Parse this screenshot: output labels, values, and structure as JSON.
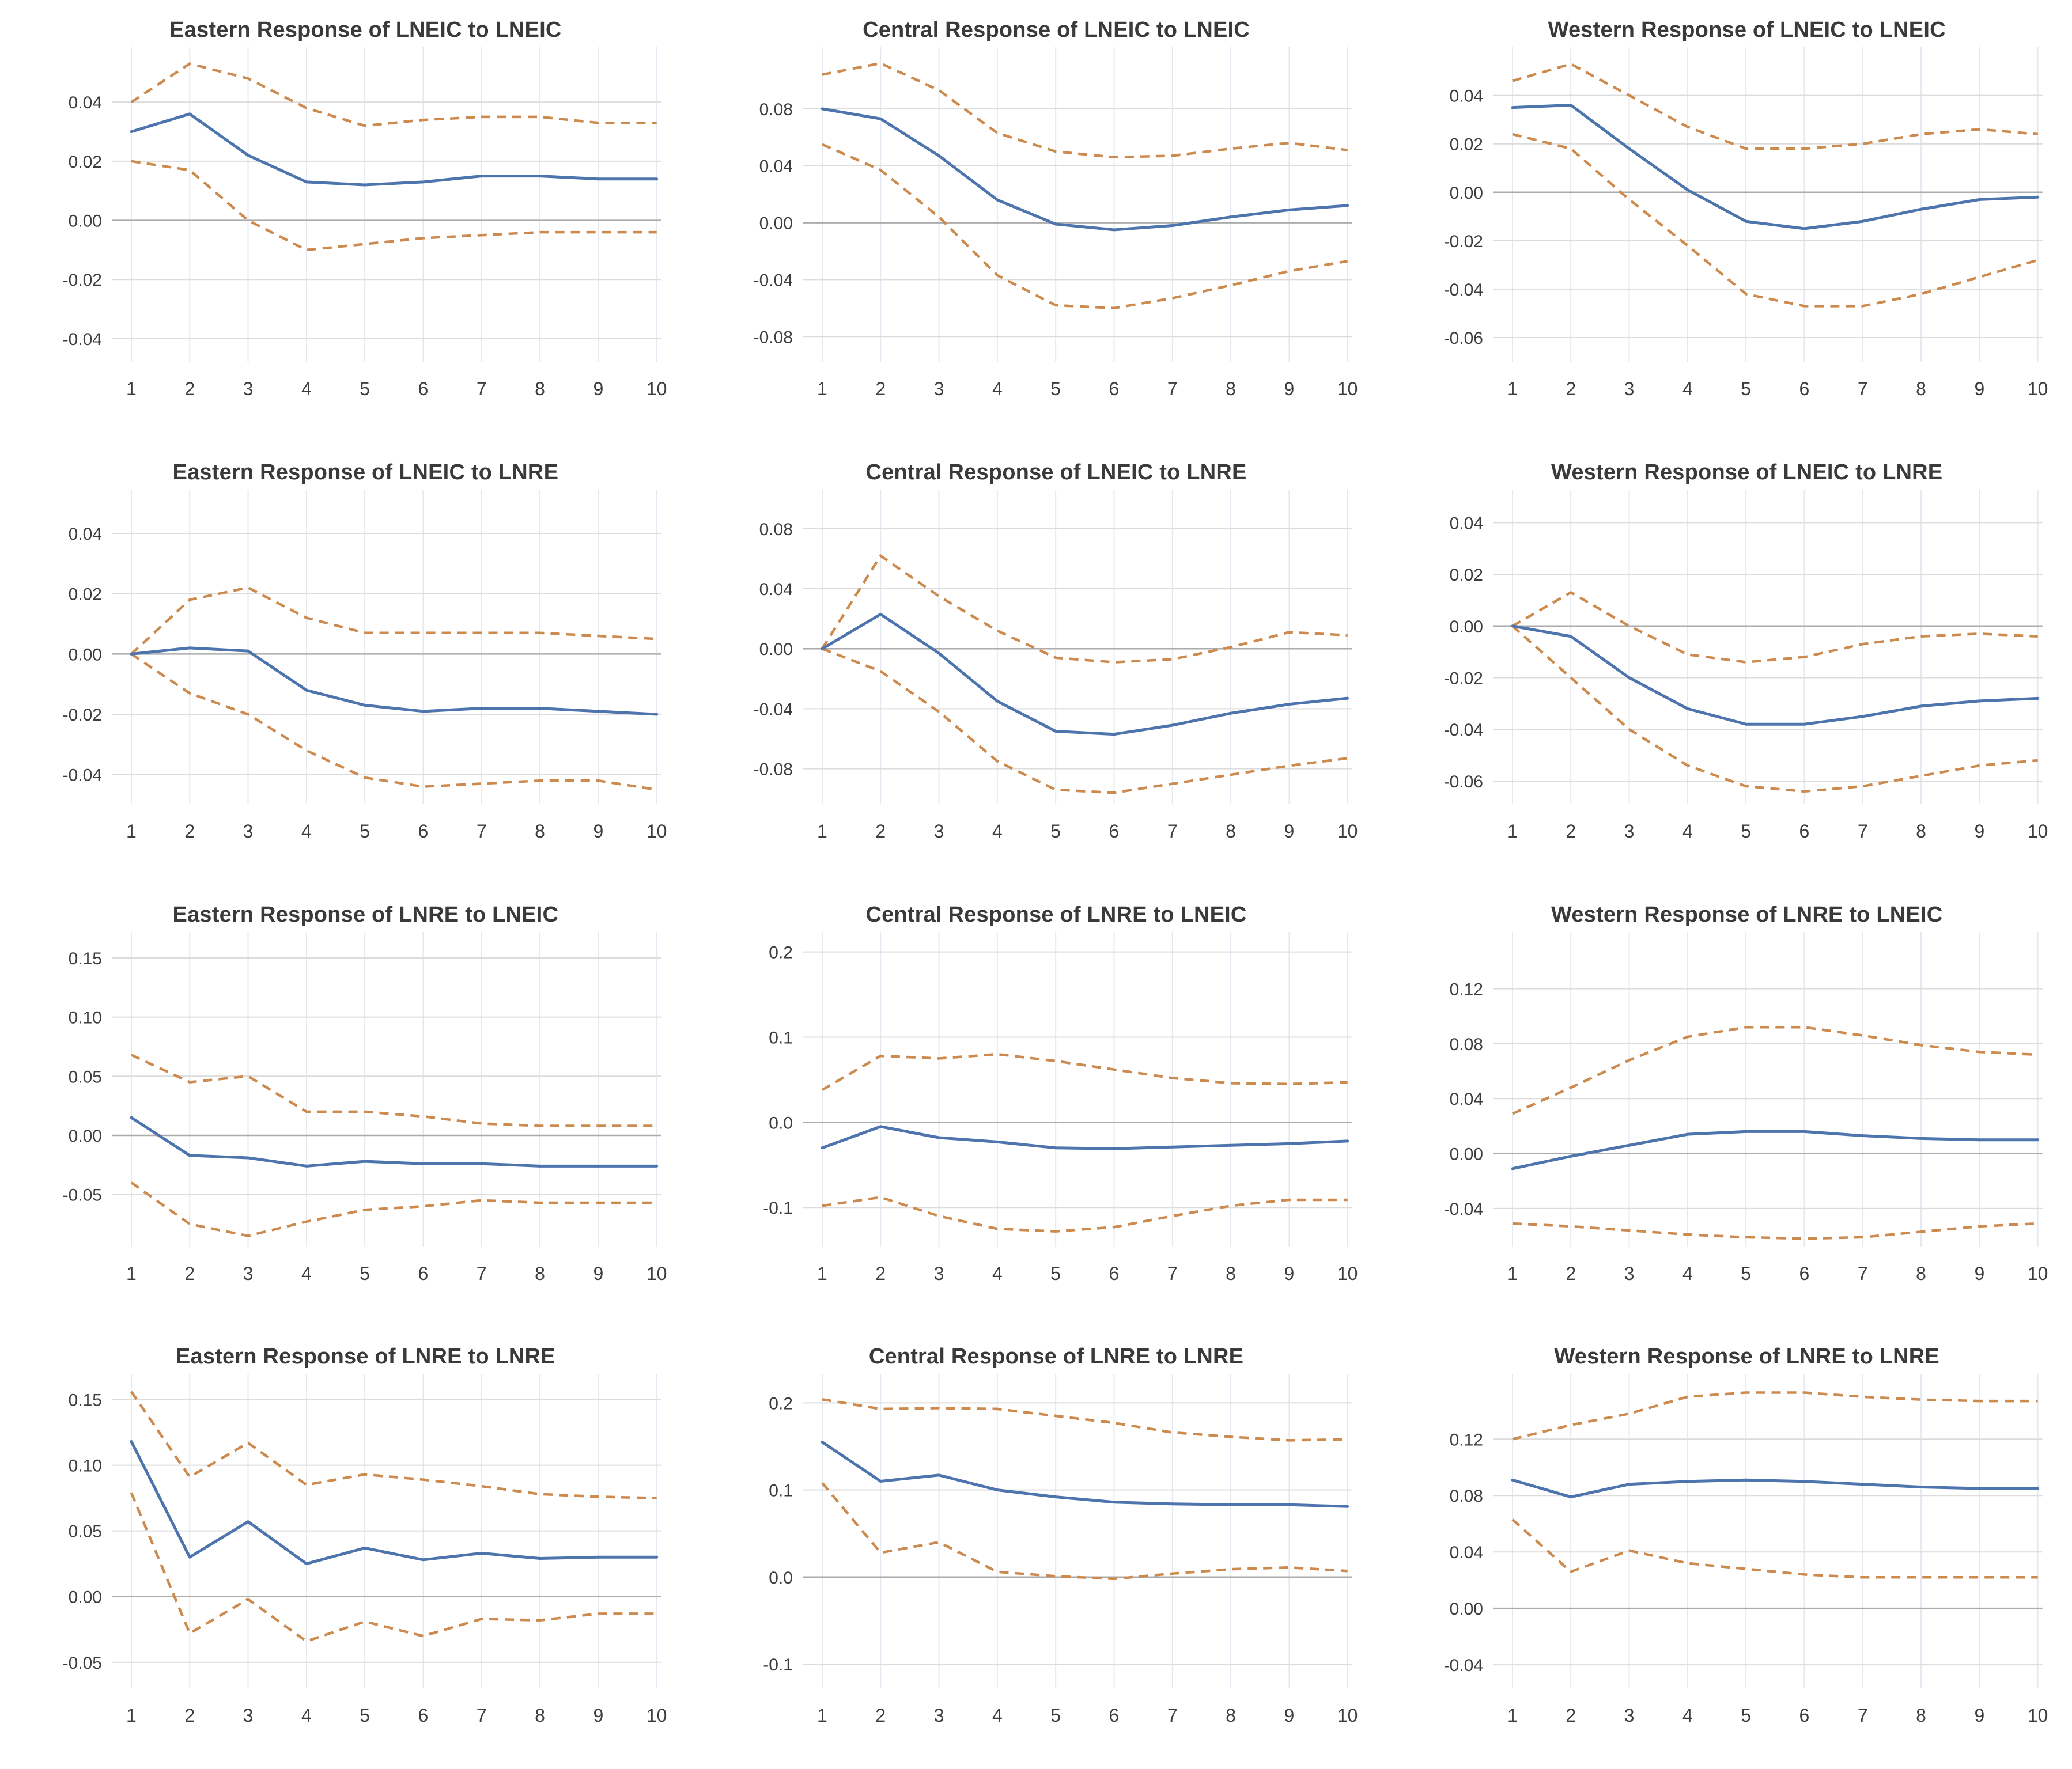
{
  "style": {
    "response_line_color": "#4e74ae",
    "band_line_color": "#cd8a4e",
    "grid_color": "#dcdcdc",
    "zero_line_color": "#ababab",
    "vgrid_color": "#e4e9f1",
    "title_color": "#3a3a3a",
    "tick_label_color": "#3d3d3d",
    "background": "#ffffff"
  },
  "layout": {
    "rows": 4,
    "cols": 3,
    "grid": "on",
    "legend": "none",
    "x_range": [
      1,
      10
    ]
  },
  "chart_data": [
    {
      "type": "line",
      "title": "Eastern Response of LNEIC to LNEIC",
      "x": [
        1,
        2,
        3,
        4,
        5,
        6,
        7,
        8,
        9,
        10
      ],
      "xlabel": "",
      "ylabel": "",
      "ylim": [
        -0.047,
        0.057
      ],
      "y_ticks": [
        0.04,
        0.02,
        0.0,
        -0.02,
        -0.04
      ],
      "y_tick_labels": [
        "0.04",
        "0.02",
        "0.00",
        "-0.02",
        "-0.04"
      ],
      "series": [
        {
          "name": "response",
          "values": [
            0.03,
            0.036,
            0.022,
            0.013,
            0.012,
            0.013,
            0.015,
            0.015,
            0.014,
            0.014
          ]
        },
        {
          "name": "upper_band",
          "values": [
            0.04,
            0.053,
            0.048,
            0.038,
            0.032,
            0.034,
            0.035,
            0.035,
            0.033,
            0.033
          ]
        },
        {
          "name": "lower_band",
          "values": [
            0.02,
            0.017,
            0.0,
            -0.01,
            -0.008,
            -0.006,
            -0.005,
            -0.004,
            -0.004,
            -0.004
          ]
        }
      ]
    },
    {
      "type": "line",
      "title": "Central Response of LNEIC to LNEIC",
      "x": [
        1,
        2,
        3,
        4,
        5,
        6,
        7,
        8,
        9,
        10
      ],
      "xlabel": "",
      "ylabel": "",
      "ylim": [
        -0.096,
        0.12
      ],
      "y_ticks": [
        0.08,
        0.04,
        0.0,
        -0.04,
        -0.08
      ],
      "y_tick_labels": [
        "0.08",
        "0.04",
        "0.00",
        "-0.04",
        "-0.08"
      ],
      "series": [
        {
          "name": "response",
          "values": [
            0.08,
            0.073,
            0.047,
            0.016,
            -0.001,
            -0.005,
            -0.002,
            0.004,
            0.009,
            0.012
          ]
        },
        {
          "name": "upper_band",
          "values": [
            0.104,
            0.112,
            0.093,
            0.063,
            0.05,
            0.046,
            0.047,
            0.052,
            0.056,
            0.051
          ]
        },
        {
          "name": "lower_band",
          "values": [
            0.055,
            0.037,
            0.004,
            -0.037,
            -0.058,
            -0.06,
            -0.053,
            -0.044,
            -0.034,
            -0.027
          ]
        }
      ]
    },
    {
      "type": "line",
      "title": "Western Response of LNEIC to LNEIC",
      "x": [
        1,
        2,
        3,
        4,
        5,
        6,
        7,
        8,
        9,
        10
      ],
      "xlabel": "",
      "ylabel": "",
      "ylim": [
        -0.069,
        0.058
      ],
      "y_ticks": [
        0.04,
        0.02,
        0.0,
        -0.02,
        -0.04,
        -0.06
      ],
      "y_tick_labels": [
        "0.04",
        "0.02",
        "0.00",
        "-0.02",
        "-0.04",
        "-0.06"
      ],
      "series": [
        {
          "name": "response",
          "values": [
            0.035,
            0.036,
            0.018,
            0.001,
            -0.012,
            -0.015,
            -0.012,
            -0.007,
            -0.003,
            -0.002
          ]
        },
        {
          "name": "upper_band",
          "values": [
            0.046,
            0.053,
            0.04,
            0.027,
            0.018,
            0.018,
            0.02,
            0.024,
            0.026,
            0.024
          ]
        },
        {
          "name": "lower_band",
          "values": [
            0.024,
            0.018,
            -0.003,
            -0.022,
            -0.042,
            -0.047,
            -0.047,
            -0.042,
            -0.035,
            -0.028
          ]
        }
      ]
    },
    {
      "type": "line",
      "title": "Eastern Response of LNEIC to LNRE",
      "x": [
        1,
        2,
        3,
        4,
        5,
        6,
        7,
        8,
        9,
        10
      ],
      "xlabel": "",
      "ylabel": "",
      "ylim": [
        -0.049,
        0.053
      ],
      "y_ticks": [
        0.04,
        0.02,
        0.0,
        -0.02,
        -0.04
      ],
      "y_tick_labels": [
        "0.04",
        "0.02",
        "0.00",
        "-0.02",
        "-0.04"
      ],
      "series": [
        {
          "name": "response",
          "values": [
            0.0,
            0.002,
            0.001,
            -0.012,
            -0.017,
            -0.019,
            -0.018,
            -0.018,
            -0.019,
            -0.02
          ]
        },
        {
          "name": "upper_band",
          "values": [
            0.0,
            0.018,
            0.022,
            0.012,
            0.007,
            0.007,
            0.007,
            0.007,
            0.006,
            0.005
          ]
        },
        {
          "name": "lower_band",
          "values": [
            0.0,
            -0.013,
            -0.02,
            -0.032,
            -0.041,
            -0.044,
            -0.043,
            -0.042,
            -0.042,
            -0.045
          ]
        }
      ]
    },
    {
      "type": "line",
      "title": "Central Response of LNEIC to LNRE",
      "x": [
        1,
        2,
        3,
        4,
        5,
        6,
        7,
        8,
        9,
        10
      ],
      "xlabel": "",
      "ylabel": "",
      "ylim": [
        -0.102,
        0.103
      ],
      "y_ticks": [
        0.08,
        0.04,
        0.0,
        -0.04,
        -0.08
      ],
      "y_tick_labels": [
        "0.08",
        "0.04",
        "0.00",
        "-0.04",
        "-0.08"
      ],
      "series": [
        {
          "name": "response",
          "values": [
            0.0,
            0.023,
            -0.003,
            -0.035,
            -0.055,
            -0.057,
            -0.051,
            -0.043,
            -0.037,
            -0.033
          ]
        },
        {
          "name": "upper_band",
          "values": [
            0.0,
            0.062,
            0.035,
            0.012,
            -0.006,
            -0.009,
            -0.007,
            0.001,
            0.011,
            0.009
          ]
        },
        {
          "name": "lower_band",
          "values": [
            0.0,
            -0.015,
            -0.042,
            -0.075,
            -0.094,
            -0.096,
            -0.09,
            -0.084,
            -0.078,
            -0.073
          ]
        }
      ]
    },
    {
      "type": "line",
      "title": "Western Response of LNEIC to LNRE",
      "x": [
        1,
        2,
        3,
        4,
        5,
        6,
        7,
        8,
        9,
        10
      ],
      "xlabel": "",
      "ylabel": "",
      "ylim": [
        -0.068,
        0.051
      ],
      "y_ticks": [
        0.04,
        0.02,
        0.0,
        -0.02,
        -0.04,
        -0.06
      ],
      "y_tick_labels": [
        "0.04",
        "0.02",
        "0.00",
        "-0.02",
        "-0.04",
        "-0.06"
      ],
      "series": [
        {
          "name": "response",
          "values": [
            0.0,
            -0.004,
            -0.02,
            -0.032,
            -0.038,
            -0.038,
            -0.035,
            -0.031,
            -0.029,
            -0.028
          ]
        },
        {
          "name": "upper_band",
          "values": [
            0.0,
            0.013,
            0.0,
            -0.011,
            -0.014,
            -0.012,
            -0.007,
            -0.004,
            -0.003,
            -0.004
          ]
        },
        {
          "name": "lower_band",
          "values": [
            0.0,
            -0.02,
            -0.04,
            -0.054,
            -0.062,
            -0.064,
            -0.062,
            -0.058,
            -0.054,
            -0.052
          ]
        }
      ]
    },
    {
      "type": "line",
      "title": "Eastern Response of LNRE to LNEIC",
      "x": [
        1,
        2,
        3,
        4,
        5,
        6,
        7,
        8,
        9,
        10
      ],
      "xlabel": "",
      "ylabel": "",
      "ylim": [
        -0.092,
        0.168
      ],
      "y_ticks": [
        0.15,
        0.1,
        0.05,
        0.0,
        -0.05
      ],
      "y_tick_labels": [
        "0.15",
        "0.10",
        "0.05",
        "0.00",
        "-0.05"
      ],
      "series": [
        {
          "name": "response",
          "values": [
            0.015,
            -0.017,
            -0.019,
            -0.026,
            -0.022,
            -0.024,
            -0.024,
            -0.026,
            -0.026,
            -0.026
          ]
        },
        {
          "name": "upper_band",
          "values": [
            0.068,
            0.045,
            0.05,
            0.02,
            0.02,
            0.016,
            0.01,
            0.008,
            0.008,
            0.008
          ]
        },
        {
          "name": "lower_band",
          "values": [
            -0.04,
            -0.075,
            -0.085,
            -0.073,
            -0.063,
            -0.06,
            -0.055,
            -0.057,
            -0.057,
            -0.057
          ]
        }
      ]
    },
    {
      "type": "line",
      "title": "Central Response of LNRE to LNEIC",
      "x": [
        1,
        2,
        3,
        4,
        5,
        6,
        7,
        8,
        9,
        10
      ],
      "xlabel": "",
      "ylabel": "",
      "ylim": [
        -0.143,
        0.218
      ],
      "y_ticks": [
        0.2,
        0.1,
        0.0,
        -0.1
      ],
      "y_tick_labels": [
        "0.2",
        "0.1",
        "0.0",
        "-0.1"
      ],
      "series": [
        {
          "name": "response",
          "values": [
            -0.03,
            -0.005,
            -0.018,
            -0.023,
            -0.03,
            -0.031,
            -0.029,
            -0.027,
            -0.025,
            -0.022
          ]
        },
        {
          "name": "upper_band",
          "values": [
            0.038,
            0.078,
            0.075,
            0.08,
            0.072,
            0.062,
            0.052,
            0.046,
            0.045,
            0.047
          ]
        },
        {
          "name": "lower_band",
          "values": [
            -0.098,
            -0.088,
            -0.11,
            -0.125,
            -0.128,
            -0.123,
            -0.11,
            -0.098,
            -0.091,
            -0.091
          ]
        }
      ]
    },
    {
      "type": "line",
      "title": "Western Response of LNRE to LNEIC",
      "x": [
        1,
        2,
        3,
        4,
        5,
        6,
        7,
        8,
        9,
        10
      ],
      "xlabel": "",
      "ylabel": "",
      "ylim": [
        -0.066,
        0.158
      ],
      "y_ticks": [
        0.12,
        0.08,
        0.04,
        0.0,
        -0.04
      ],
      "y_tick_labels": [
        "0.12",
        "0.08",
        "0.04",
        "0.00",
        "-0.04"
      ],
      "series": [
        {
          "name": "response",
          "values": [
            -0.011,
            -0.002,
            0.006,
            0.014,
            0.016,
            0.016,
            0.013,
            0.011,
            0.01,
            0.01
          ]
        },
        {
          "name": "upper_band",
          "values": [
            0.029,
            0.048,
            0.068,
            0.085,
            0.092,
            0.092,
            0.086,
            0.079,
            0.074,
            0.072
          ]
        },
        {
          "name": "lower_band",
          "values": [
            -0.051,
            -0.053,
            -0.056,
            -0.059,
            -0.061,
            -0.062,
            -0.061,
            -0.057,
            -0.053,
            -0.051
          ]
        }
      ]
    },
    {
      "type": "line",
      "title": "Eastern Response of LNRE to LNRE",
      "x": [
        1,
        2,
        3,
        4,
        5,
        6,
        7,
        8,
        9,
        10
      ],
      "xlabel": "",
      "ylabel": "",
      "ylim": [
        -0.068,
        0.166
      ],
      "y_ticks": [
        0.15,
        0.1,
        0.05,
        0.0,
        -0.05
      ],
      "y_tick_labels": [
        "0.15",
        "0.10",
        "0.05",
        "0.00",
        "-0.05"
      ],
      "series": [
        {
          "name": "response",
          "values": [
            0.118,
            0.03,
            0.057,
            0.025,
            0.037,
            0.028,
            0.033,
            0.029,
            0.03,
            0.03
          ]
        },
        {
          "name": "upper_band",
          "values": [
            0.156,
            0.091,
            0.117,
            0.085,
            0.093,
            0.089,
            0.084,
            0.078,
            0.076,
            0.075
          ]
        },
        {
          "name": "lower_band",
          "values": [
            0.079,
            -0.028,
            -0.002,
            -0.034,
            -0.019,
            -0.03,
            -0.017,
            -0.018,
            -0.013,
            -0.013
          ]
        }
      ]
    },
    {
      "type": "line",
      "title": "Central Response of LNRE to LNRE",
      "x": [
        1,
        2,
        3,
        4,
        5,
        6,
        7,
        8,
        9,
        10
      ],
      "xlabel": "",
      "ylabel": "",
      "ylim": [
        -0.125,
        0.228
      ],
      "y_ticks": [
        0.2,
        0.1,
        0.0,
        -0.1
      ],
      "y_tick_labels": [
        "0.2",
        "0.1",
        "0.0",
        "-0.1"
      ],
      "series": [
        {
          "name": "response",
          "values": [
            0.155,
            0.11,
            0.117,
            0.1,
            0.092,
            0.086,
            0.084,
            0.083,
            0.083,
            0.081
          ]
        },
        {
          "name": "upper_band",
          "values": [
            0.204,
            0.193,
            0.194,
            0.193,
            0.185,
            0.177,
            0.166,
            0.161,
            0.157,
            0.158
          ]
        },
        {
          "name": "lower_band",
          "values": [
            0.108,
            0.028,
            0.04,
            0.006,
            0.001,
            -0.002,
            0.004,
            0.009,
            0.011,
            0.007
          ]
        }
      ]
    },
    {
      "type": "line",
      "title": "Western Response of LNRE to LNRE",
      "x": [
        1,
        2,
        3,
        4,
        5,
        6,
        7,
        8,
        9,
        10
      ],
      "xlabel": "",
      "ylabel": "",
      "ylim": [
        -0.055,
        0.163
      ],
      "y_ticks": [
        0.12,
        0.08,
        0.04,
        0.0,
        -0.04
      ],
      "y_tick_labels": [
        "0.12",
        "0.08",
        "0.04",
        "0.00",
        "-0.04"
      ],
      "series": [
        {
          "name": "response",
          "values": [
            0.091,
            0.079,
            0.088,
            0.09,
            0.091,
            0.09,
            0.088,
            0.086,
            0.085,
            0.085
          ]
        },
        {
          "name": "upper_band",
          "values": [
            0.12,
            0.13,
            0.138,
            0.15,
            0.153,
            0.153,
            0.15,
            0.148,
            0.147,
            0.147
          ]
        },
        {
          "name": "lower_band",
          "values": [
            0.063,
            0.026,
            0.041,
            0.032,
            0.028,
            0.024,
            0.022,
            0.022,
            0.022,
            0.022
          ]
        }
      ]
    }
  ]
}
